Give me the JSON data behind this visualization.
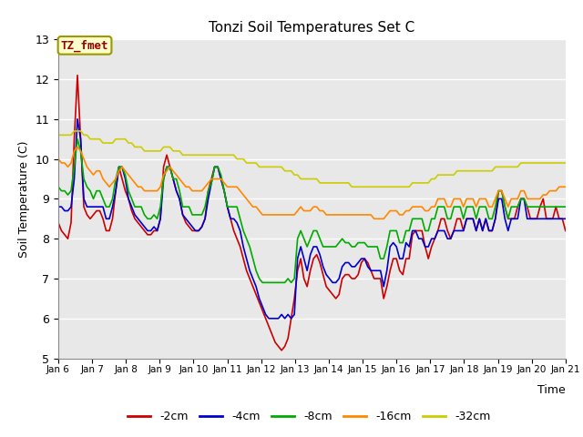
{
  "title": "Tonzi Soil Temperatures Set C",
  "xlabel": "Time",
  "ylabel": "Soil Temperature (C)",
  "ylim": [
    5.0,
    13.0
  ],
  "yticks": [
    5.0,
    6.0,
    7.0,
    8.0,
    9.0,
    10.0,
    11.0,
    12.0,
    13.0
  ],
  "x_tick_labels": [
    "Jan 6",
    "Jan 7",
    "Jan 8",
    "Jan 9",
    "Jan 10",
    "Jan 11",
    "Jan 12",
    "Jan 13",
    "Jan 14",
    "Jan 15",
    "Jan 16",
    "Jan 17",
    "Jan 18",
    "Jan 19",
    "Jan 20",
    "Jan 21"
  ],
  "colors": {
    "-2cm": "#cc0000",
    "-4cm": "#0000cc",
    "-8cm": "#00aa00",
    "-16cm": "#ff8800",
    "-32cm": "#cccc00"
  },
  "legend_label": "TZ_fmet",
  "legend_box_facecolor": "#ffffcc",
  "legend_box_edgecolor": "#999900",
  "legend_text_color": "#990000",
  "bg_color": "#e8e8e8",
  "fig_bg_color": "#ffffff",
  "grid_color": "#ffffff",
  "series": {
    "-2cm": [
      8.4,
      8.2,
      8.1,
      8.0,
      8.4,
      10.5,
      12.1,
      10.5,
      8.8,
      8.6,
      8.5,
      8.6,
      8.7,
      8.7,
      8.5,
      8.2,
      8.2,
      8.5,
      9.2,
      9.8,
      9.5,
      9.2,
      9.0,
      8.7,
      8.5,
      8.4,
      8.3,
      8.2,
      8.1,
      8.1,
      8.2,
      8.2,
      8.5,
      9.8,
      10.1,
      9.8,
      9.5,
      9.2,
      9.0,
      8.6,
      8.4,
      8.3,
      8.2,
      8.2,
      8.2,
      8.3,
      8.5,
      9.2,
      9.5,
      9.8,
      9.8,
      9.5,
      9.2,
      8.8,
      8.5,
      8.2,
      8.0,
      7.8,
      7.5,
      7.2,
      7.0,
      6.8,
      6.6,
      6.4,
      6.2,
      6.0,
      5.8,
      5.6,
      5.4,
      5.3,
      5.2,
      5.3,
      5.5,
      6.0,
      6.5,
      7.2,
      7.5,
      7.0,
      6.8,
      7.2,
      7.5,
      7.6,
      7.4,
      7.1,
      6.8,
      6.7,
      6.6,
      6.5,
      6.6,
      7.0,
      7.1,
      7.1,
      7.0,
      7.0,
      7.1,
      7.4,
      7.5,
      7.4,
      7.2,
      7.0,
      7.0,
      7.0,
      6.5,
      6.8,
      7.2,
      7.5,
      7.5,
      7.2,
      7.1,
      7.5,
      7.5,
      8.1,
      8.2,
      8.2,
      8.2,
      7.8,
      7.5,
      7.8,
      8.0,
      8.2,
      8.5,
      8.5,
      8.2,
      8.0,
      8.2,
      8.5,
      8.5,
      8.2,
      8.5,
      8.5,
      8.5,
      8.2,
      8.5,
      8.2,
      8.5,
      8.2,
      8.2,
      8.5,
      9.2,
      9.2,
      8.8,
      8.5,
      8.5,
      8.5,
      8.8,
      9.0,
      9.0,
      8.8,
      8.5,
      8.5,
      8.5,
      8.8,
      9.0,
      8.5,
      8.5,
      8.5,
      8.8,
      8.5,
      8.5,
      8.2
    ],
    "-4cm": [
      8.8,
      8.8,
      8.7,
      8.7,
      8.8,
      9.5,
      11.0,
      10.5,
      9.0,
      8.8,
      8.8,
      8.8,
      8.8,
      8.8,
      8.8,
      8.5,
      8.5,
      8.8,
      9.2,
      9.8,
      9.8,
      9.5,
      9.0,
      8.8,
      8.6,
      8.5,
      8.4,
      8.3,
      8.2,
      8.2,
      8.3,
      8.2,
      8.5,
      9.5,
      9.8,
      9.8,
      9.5,
      9.2,
      9.0,
      8.6,
      8.5,
      8.4,
      8.3,
      8.2,
      8.2,
      8.3,
      8.5,
      9.0,
      9.4,
      9.8,
      9.8,
      9.5,
      9.2,
      8.8,
      8.5,
      8.5,
      8.4,
      8.2,
      7.8,
      7.5,
      7.2,
      7.0,
      6.8,
      6.5,
      6.3,
      6.1,
      6.0,
      6.0,
      6.0,
      6.0,
      6.1,
      6.0,
      6.1,
      6.0,
      6.1,
      7.5,
      7.8,
      7.5,
      7.2,
      7.6,
      7.8,
      7.8,
      7.6,
      7.3,
      7.1,
      7.0,
      6.9,
      6.9,
      7.0,
      7.3,
      7.4,
      7.4,
      7.3,
      7.3,
      7.4,
      7.5,
      7.5,
      7.3,
      7.2,
      7.2,
      7.2,
      7.2,
      6.8,
      7.2,
      7.8,
      7.9,
      7.8,
      7.5,
      7.5,
      7.9,
      7.8,
      8.2,
      8.2,
      8.0,
      8.0,
      7.8,
      7.8,
      8.0,
      8.0,
      8.2,
      8.2,
      8.2,
      8.0,
      8.0,
      8.2,
      8.2,
      8.2,
      8.2,
      8.5,
      8.5,
      8.5,
      8.2,
      8.5,
      8.2,
      8.5,
      8.2,
      8.2,
      8.5,
      9.0,
      9.0,
      8.5,
      8.2,
      8.5,
      8.5,
      8.5,
      9.0,
      9.0,
      8.5,
      8.5,
      8.5,
      8.5,
      8.5,
      8.5,
      8.5,
      8.5,
      8.5,
      8.5,
      8.5,
      8.5,
      8.5
    ],
    "-8cm": [
      9.3,
      9.2,
      9.2,
      9.1,
      9.2,
      9.8,
      10.5,
      10.2,
      9.5,
      9.3,
      9.2,
      9.0,
      9.2,
      9.2,
      9.0,
      8.8,
      8.8,
      9.0,
      9.5,
      9.8,
      9.8,
      9.6,
      9.2,
      9.0,
      8.8,
      8.8,
      8.8,
      8.6,
      8.5,
      8.5,
      8.6,
      8.5,
      8.8,
      9.5,
      9.8,
      9.8,
      9.5,
      9.5,
      9.2,
      8.8,
      8.8,
      8.8,
      8.6,
      8.6,
      8.6,
      8.6,
      8.8,
      9.2,
      9.4,
      9.8,
      9.8,
      9.6,
      9.2,
      8.8,
      8.8,
      8.8,
      8.8,
      8.5,
      8.2,
      8.0,
      7.8,
      7.5,
      7.2,
      7.0,
      6.9,
      6.9,
      6.9,
      6.9,
      6.9,
      6.9,
      6.9,
      6.9,
      7.0,
      6.9,
      7.0,
      8.0,
      8.2,
      8.0,
      7.8,
      8.0,
      8.2,
      8.2,
      8.0,
      7.8,
      7.8,
      7.8,
      7.8,
      7.8,
      7.9,
      8.0,
      7.9,
      7.9,
      7.8,
      7.8,
      7.9,
      7.9,
      7.9,
      7.8,
      7.8,
      7.8,
      7.8,
      7.5,
      7.5,
      7.8,
      8.2,
      8.2,
      8.2,
      7.9,
      7.9,
      8.2,
      8.2,
      8.5,
      8.5,
      8.5,
      8.5,
      8.2,
      8.2,
      8.5,
      8.5,
      8.8,
      8.8,
      8.8,
      8.5,
      8.5,
      8.8,
      8.8,
      8.8,
      8.5,
      8.8,
      8.8,
      8.8,
      8.5,
      8.8,
      8.8,
      8.8,
      8.5,
      8.5,
      8.8,
      9.2,
      9.2,
      8.8,
      8.5,
      8.8,
      8.8,
      8.8,
      9.0,
      9.0,
      8.8,
      8.8,
      8.8,
      8.8,
      8.8,
      8.8,
      8.8,
      8.8,
      8.8,
      8.8,
      8.8,
      8.8,
      8.8
    ],
    "-16cm": [
      10.0,
      9.9,
      9.9,
      9.8,
      9.9,
      10.2,
      10.3,
      10.2,
      10.0,
      9.8,
      9.7,
      9.6,
      9.7,
      9.7,
      9.5,
      9.4,
      9.3,
      9.4,
      9.5,
      9.7,
      9.8,
      9.7,
      9.6,
      9.5,
      9.4,
      9.3,
      9.3,
      9.2,
      9.2,
      9.2,
      9.2,
      9.2,
      9.3,
      9.6,
      9.7,
      9.8,
      9.7,
      9.6,
      9.5,
      9.4,
      9.3,
      9.3,
      9.2,
      9.2,
      9.2,
      9.2,
      9.3,
      9.4,
      9.5,
      9.5,
      9.5,
      9.5,
      9.4,
      9.3,
      9.3,
      9.3,
      9.3,
      9.2,
      9.1,
      9.0,
      8.9,
      8.8,
      8.8,
      8.7,
      8.6,
      8.6,
      8.6,
      8.6,
      8.6,
      8.6,
      8.6,
      8.6,
      8.6,
      8.6,
      8.6,
      8.7,
      8.8,
      8.7,
      8.7,
      8.7,
      8.8,
      8.8,
      8.7,
      8.7,
      8.6,
      8.6,
      8.6,
      8.6,
      8.6,
      8.6,
      8.6,
      8.6,
      8.6,
      8.6,
      8.6,
      8.6,
      8.6,
      8.6,
      8.6,
      8.5,
      8.5,
      8.5,
      8.5,
      8.6,
      8.7,
      8.7,
      8.7,
      8.6,
      8.6,
      8.7,
      8.7,
      8.8,
      8.8,
      8.8,
      8.8,
      8.7,
      8.7,
      8.8,
      8.8,
      9.0,
      9.0,
      9.0,
      8.8,
      8.8,
      9.0,
      9.0,
      9.0,
      8.8,
      9.0,
      9.0,
      9.0,
      8.8,
      9.0,
      9.0,
      9.0,
      8.8,
      8.8,
      9.0,
      9.2,
      9.2,
      9.0,
      8.8,
      9.0,
      9.0,
      9.0,
      9.2,
      9.2,
      9.0,
      9.0,
      9.0,
      9.0,
      9.0,
      9.1,
      9.1,
      9.2,
      9.2,
      9.2,
      9.3,
      9.3,
      9.3
    ],
    "-32cm": [
      10.6,
      10.6,
      10.6,
      10.6,
      10.6,
      10.7,
      10.7,
      10.7,
      10.6,
      10.6,
      10.5,
      10.5,
      10.5,
      10.5,
      10.4,
      10.4,
      10.4,
      10.4,
      10.5,
      10.5,
      10.5,
      10.5,
      10.4,
      10.4,
      10.3,
      10.3,
      10.3,
      10.2,
      10.2,
      10.2,
      10.2,
      10.2,
      10.2,
      10.3,
      10.3,
      10.3,
      10.2,
      10.2,
      10.2,
      10.1,
      10.1,
      10.1,
      10.1,
      10.1,
      10.1,
      10.1,
      10.1,
      10.1,
      10.1,
      10.1,
      10.1,
      10.1,
      10.1,
      10.1,
      10.1,
      10.1,
      10.0,
      10.0,
      10.0,
      9.9,
      9.9,
      9.9,
      9.9,
      9.8,
      9.8,
      9.8,
      9.8,
      9.8,
      9.8,
      9.8,
      9.8,
      9.7,
      9.7,
      9.7,
      9.6,
      9.6,
      9.5,
      9.5,
      9.5,
      9.5,
      9.5,
      9.5,
      9.4,
      9.4,
      9.4,
      9.4,
      9.4,
      9.4,
      9.4,
      9.4,
      9.4,
      9.4,
      9.3,
      9.3,
      9.3,
      9.3,
      9.3,
      9.3,
      9.3,
      9.3,
      9.3,
      9.3,
      9.3,
      9.3,
      9.3,
      9.3,
      9.3,
      9.3,
      9.3,
      9.3,
      9.3,
      9.4,
      9.4,
      9.4,
      9.4,
      9.4,
      9.4,
      9.5,
      9.5,
      9.6,
      9.6,
      9.6,
      9.6,
      9.6,
      9.6,
      9.7,
      9.7,
      9.7,
      9.7,
      9.7,
      9.7,
      9.7,
      9.7,
      9.7,
      9.7,
      9.7,
      9.7,
      9.8,
      9.8,
      9.8,
      9.8,
      9.8,
      9.8,
      9.8,
      9.8,
      9.9,
      9.9,
      9.9,
      9.9,
      9.9,
      9.9,
      9.9,
      9.9,
      9.9,
      9.9,
      9.9,
      9.9,
      9.9,
      9.9,
      9.9
    ]
  }
}
